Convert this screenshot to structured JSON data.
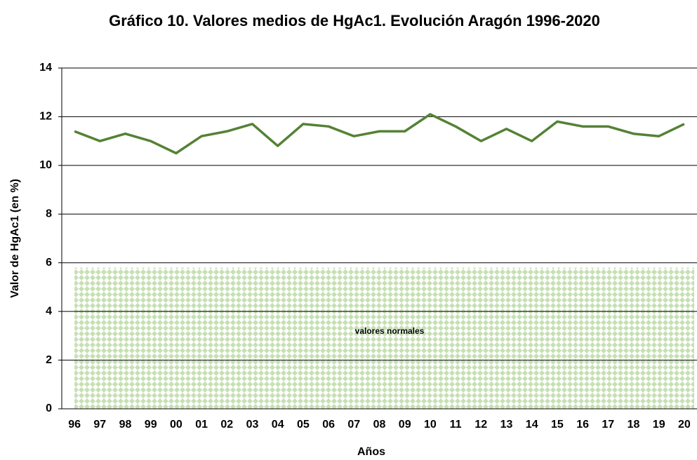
{
  "chart_data": {
    "type": "line",
    "title": "Gráfico 10. Valores medios de HgAc1. Evolución Aragón 1996-2020",
    "x_label": "Años",
    "y_label": "Valor de HgAc1 (en %)",
    "categories": [
      "96",
      "97",
      "98",
      "99",
      "00",
      "01",
      "02",
      "03",
      "04",
      "05",
      "06",
      "07",
      "08",
      "09",
      "10",
      "11",
      "12",
      "13",
      "14",
      "15",
      "16",
      "17",
      "18",
      "19",
      "20"
    ],
    "series": [
      {
        "name": "HgAc1",
        "color": "#548235",
        "values": [
          11.4,
          11.0,
          11.3,
          11.0,
          10.5,
          11.2,
          11.4,
          11.7,
          10.8,
          11.7,
          11.6,
          11.2,
          11.4,
          11.4,
          12.1,
          11.6,
          11.0,
          11.5,
          11.0,
          11.8,
          11.6,
          11.6,
          11.3,
          11.2,
          11.7
        ]
      }
    ],
    "normal_band": {
      "label": "valores normales",
      "range": [
        0,
        5.8
      ],
      "color": "#c6e0b4"
    },
    "ylim": [
      0,
      14
    ],
    "yticks": [
      0,
      2,
      4,
      6,
      8,
      10,
      12,
      14
    ],
    "grid": true
  }
}
